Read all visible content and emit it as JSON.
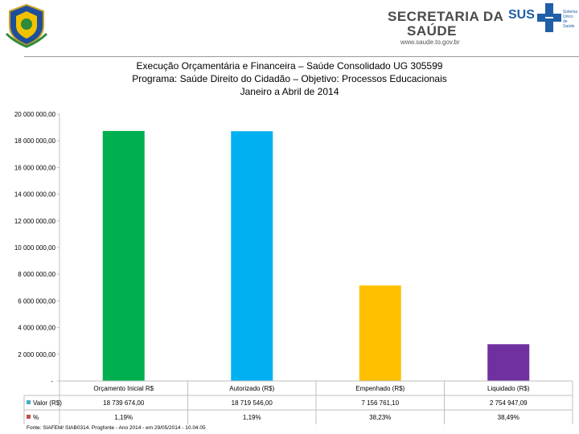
{
  "header": {
    "secretaria": [
      "SECRETARIA DA",
      "SAÚDE"
    ],
    "url": "www.saude.to.gov.br",
    "sus_label": "SUS",
    "sus_sub": "Sistema Único de Saúde"
  },
  "titles": [
    "Execução Orçamentária e Financeira –  Saúde Consolidado UG 305599",
    "Programa: Saúde Direito do Cidadão – Objetivo: Processos Educacionais",
    "Janeiro a Abril de 2014"
  ],
  "chart_data": {
    "type": "bar",
    "categories": [
      "Orçamento Inicial R$",
      "Autorizado (R$)",
      "Empenhado (R$)",
      "Liquidado (R$)"
    ],
    "values": [
      18739674.0,
      18719546.0,
      7156761.1,
      2754947.09
    ],
    "bar_colors": [
      "#00b050",
      "#00b0f0",
      "#ffc000",
      "#7030a0"
    ],
    "ylim": [
      0,
      20000000
    ],
    "y_ticks": [
      "-",
      "2 000 000,00",
      "4 000 000,00",
      "6 000 000,00",
      "8 000 000,00",
      "10 000 000,00",
      "12 000 000,00",
      "14 000 000,00",
      "16 000 000,00",
      "18 000 000,00",
      "20 000 000,00"
    ],
    "table": {
      "rows": [
        {
          "label": "Valor (R$)",
          "color": "#4bacc6",
          "cells": [
            "18 739 674,00",
            "18 719 546,00",
            "7 156 761,10",
            "2 754 947,09"
          ]
        },
        {
          "label": "%",
          "color": "#c0504d",
          "cells": [
            "1,19%",
            "1,19%",
            "38,23%",
            "38,49%"
          ]
        }
      ]
    }
  },
  "footer": "Fonte: SIAFEM/ SIAB0314. Progfonte - Ano 2014 - em 29/05/2014 - 10.04.05"
}
